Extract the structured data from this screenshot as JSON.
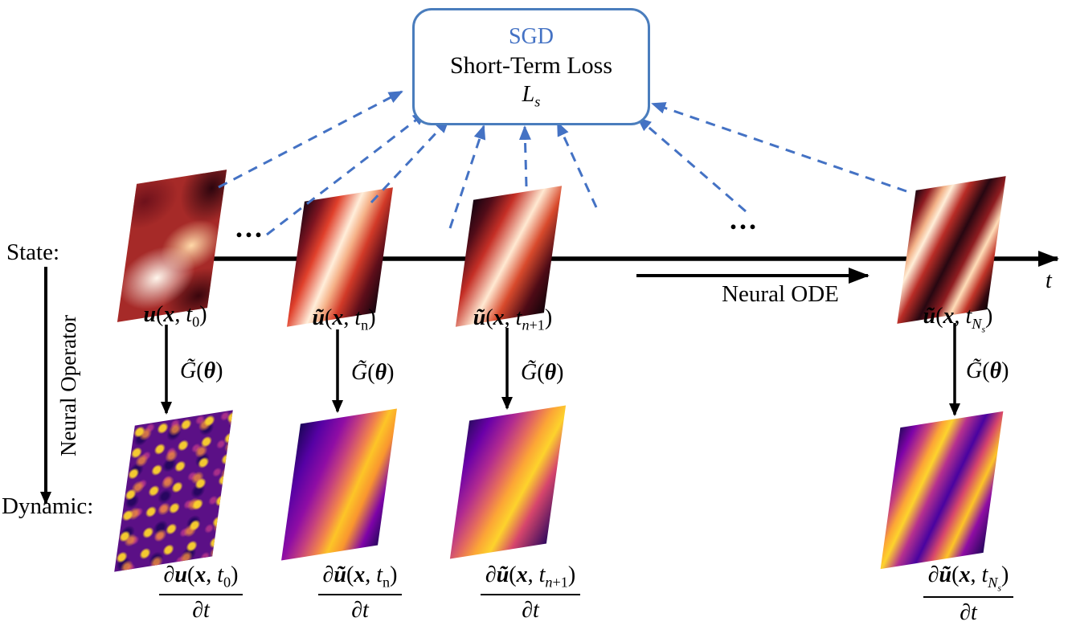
{
  "loss_box": {
    "sgd": "SGD",
    "title": "Short-Term Loss",
    "symbol_html": "<i>L<sub>s</sub></i>"
  },
  "labels": {
    "state": "State:",
    "dynamic": "Dynamic:",
    "neural_operator": "Neural Operator",
    "neural_ode": "Neural ODE",
    "time": "t",
    "dots_left": "...",
    "dots_right": "..."
  },
  "columns": [
    {
      "id": "t0",
      "state_label_html": "<b><i>u</i></b>(<b><i>x</i></b>, <i>t</i><sub>0</sub>)",
      "operator_label_html": "<i>G̃</i>(<b><i>θ</i></b>)",
      "deriv_numerator_html": "∂<b><i>u</i></b>(<b><i>x</i></b>, <i>t</i><sub>0</sub>)",
      "deriv_denominator_html": "∂<i>t</i>"
    },
    {
      "id": "tn",
      "state_label_html": "<b><i>ũ</i></b>(<b><i>x</i></b>, <i>t</i><sub>n</sub>)",
      "operator_label_html": "<i>G̃</i>(<b><i>θ</i></b>)",
      "deriv_numerator_html": "∂<b><i>ũ</i></b>(<b><i>x</i></b>, <i>t</i><sub>n</sub>)",
      "deriv_denominator_html": "∂<i>t</i>"
    },
    {
      "id": "tn+1",
      "state_label_html": "<b><i>ũ</i></b>(<b><i>x</i></b>, <i>t</i><sub><i>n</i>+1</sub>)",
      "operator_label_html": "<i>G̃</i>(<b><i>θ</i></b>)",
      "deriv_numerator_html": "∂<b><i>ũ</i></b>(<b><i>x</i></b>, <i>t</i><sub><i>n</i>+1</sub>)",
      "deriv_denominator_html": "∂<i>t</i>"
    },
    {
      "id": "tNs",
      "state_label_html": "<b><i>ũ</i></b>(<b><i>x</i></b>, <i>t</i><sub><i>N<sub>s</sub></i></sub>)",
      "operator_label_html": "<i>G̃</i>(<b><i>θ</i></b>)",
      "deriv_numerator_html": "∂<b><i>ũ</i></b>(<b><i>x</i></b>, <i>t</i><sub><i>N<sub>s</sub></i></sub>)",
      "deriv_denominator_html": "∂<i>t</i>"
    }
  ],
  "colors": {
    "accent_blue": "#4472c4",
    "box_border": "#4a7dbd",
    "axis_black": "#000000"
  }
}
